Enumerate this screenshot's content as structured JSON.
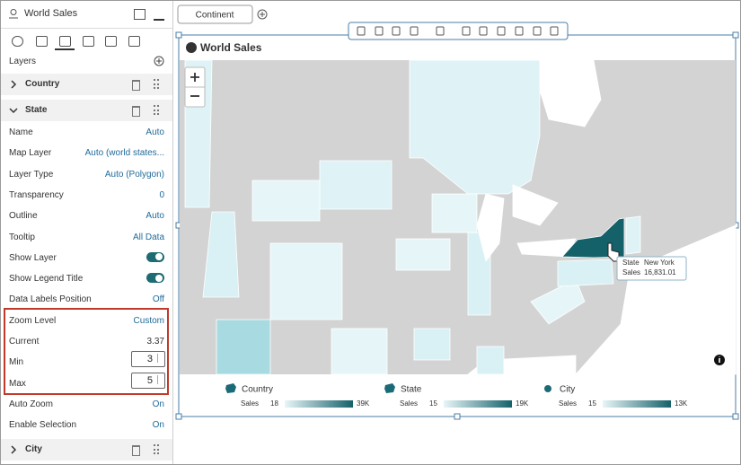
{
  "panel": {
    "title": "World Sales",
    "section": "Layers",
    "layers": [
      {
        "name": "Country",
        "expanded": false
      },
      {
        "name": "State",
        "expanded": true
      },
      {
        "name": "City",
        "expanded": false
      }
    ],
    "properties": [
      {
        "label": "Name",
        "value": "Auto",
        "kind": "link"
      },
      {
        "label": "Map Layer",
        "value": "Auto (world states...",
        "kind": "link"
      },
      {
        "label": "Layer Type",
        "value": "Auto (Polygon)",
        "kind": "link"
      },
      {
        "label": "Transparency",
        "value": "0",
        "kind": "link"
      },
      {
        "label": "Outline",
        "value": "Auto",
        "kind": "link"
      },
      {
        "label": "Tooltip",
        "value": "All Data",
        "kind": "link"
      },
      {
        "label": "Show Layer",
        "kind": "toggle"
      },
      {
        "label": "Show Legend Title",
        "kind": "toggle"
      },
      {
        "label": "Data Labels Position",
        "value": "Off",
        "kind": "link"
      },
      {
        "label": "Zoom Level",
        "value": "Custom",
        "kind": "link"
      },
      {
        "label": "Current",
        "value": "3.37",
        "kind": "text"
      },
      {
        "label": "Min",
        "value": "3",
        "kind": "input"
      },
      {
        "label": "Max",
        "value": "5",
        "kind": "input"
      },
      {
        "label": "Auto Zoom",
        "value": "On",
        "kind": "link"
      },
      {
        "label": "Enable Selection",
        "value": "On",
        "kind": "link"
      }
    ]
  },
  "canvas": {
    "tab": "Continent",
    "title": "World Sales",
    "tooltip": {
      "label1": "State",
      "value1": "New York",
      "label2": "Sales",
      "value2": "16,831.01"
    },
    "legend": [
      {
        "name": "Country",
        "measure": "Sales",
        "min": "18",
        "max": "39K"
      },
      {
        "name": "State",
        "measure": "Sales",
        "min": "15",
        "max": "19K"
      },
      {
        "name": "City",
        "measure": "Sales",
        "min": "15",
        "max": "13K"
      }
    ]
  }
}
